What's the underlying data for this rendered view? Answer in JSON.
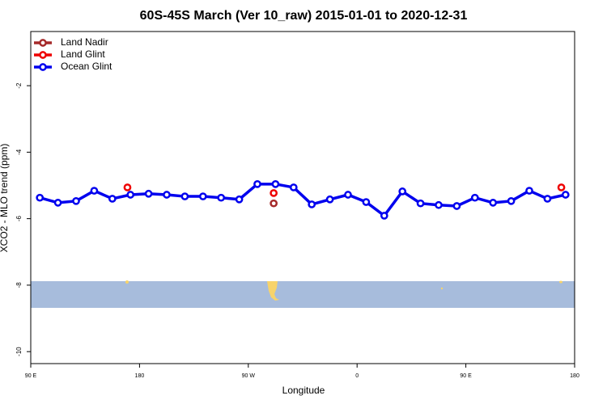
{
  "chart_data": {
    "type": "line",
    "title": "60S-45S March (Ver 10_raw)   2015-01-01 to 2020-12-31",
    "x_label": "Longitude",
    "y_label": "XCO2 - MLO trend (ppm)",
    "xlim": [
      90,
      540
    ],
    "xticks": [
      {
        "value": 90,
        "label": "90 E"
      },
      180,
      {
        "value": 270,
        "label": "90 W"
      },
      {
        "value": 360,
        "label": "0"
      },
      {
        "value": 450,
        "label": "90 E"
      },
      {
        "value": 540,
        "label": "180"
      }
    ],
    "ylim": [
      -10.36,
      -0.37
    ],
    "yticks": [
      -10,
      -8,
      -6,
      -4,
      -2
    ],
    "legend": "top-left",
    "series": [
      {
        "name": "Land Nadir",
        "color": "#a52a2a",
        "mode": "points",
        "x": [
          291
        ],
        "values": [
          -5.54
        ]
      },
      {
        "name": "Land Glint",
        "color": "#ee0000",
        "mode": "points",
        "x": [
          170,
          291,
          529
        ],
        "values": [
          -5.06,
          -5.23,
          -5.06
        ]
      },
      {
        "name": "Ocean Glint",
        "color": "#0000ee",
        "mode": "lines+points",
        "x": [
          97.5,
          112.5,
          127.5,
          142.5,
          157.5,
          172.5,
          187.5,
          202.5,
          217.5,
          232.5,
          247.5,
          262.5,
          277.5,
          292.5,
          307.5,
          322.5,
          337.5,
          352.5,
          367.5,
          382.5,
          397.5,
          412.5,
          427.5,
          442.5,
          457.5,
          472.5,
          487.5,
          502.5,
          517.5,
          532.5
        ],
        "values": [
          -5.37,
          -5.52,
          -5.47,
          -5.16,
          -5.4,
          -5.28,
          -5.25,
          -5.28,
          -5.33,
          -5.33,
          -5.37,
          -5.42,
          -4.96,
          -4.96,
          -5.06,
          -5.57,
          -5.42,
          -5.28,
          -5.5,
          -5.91,
          -5.18,
          -5.54,
          -5.59,
          -5.62,
          -5.37,
          -5.52,
          -5.47,
          -5.16,
          -5.4,
          -5.28
        ]
      }
    ]
  }
}
